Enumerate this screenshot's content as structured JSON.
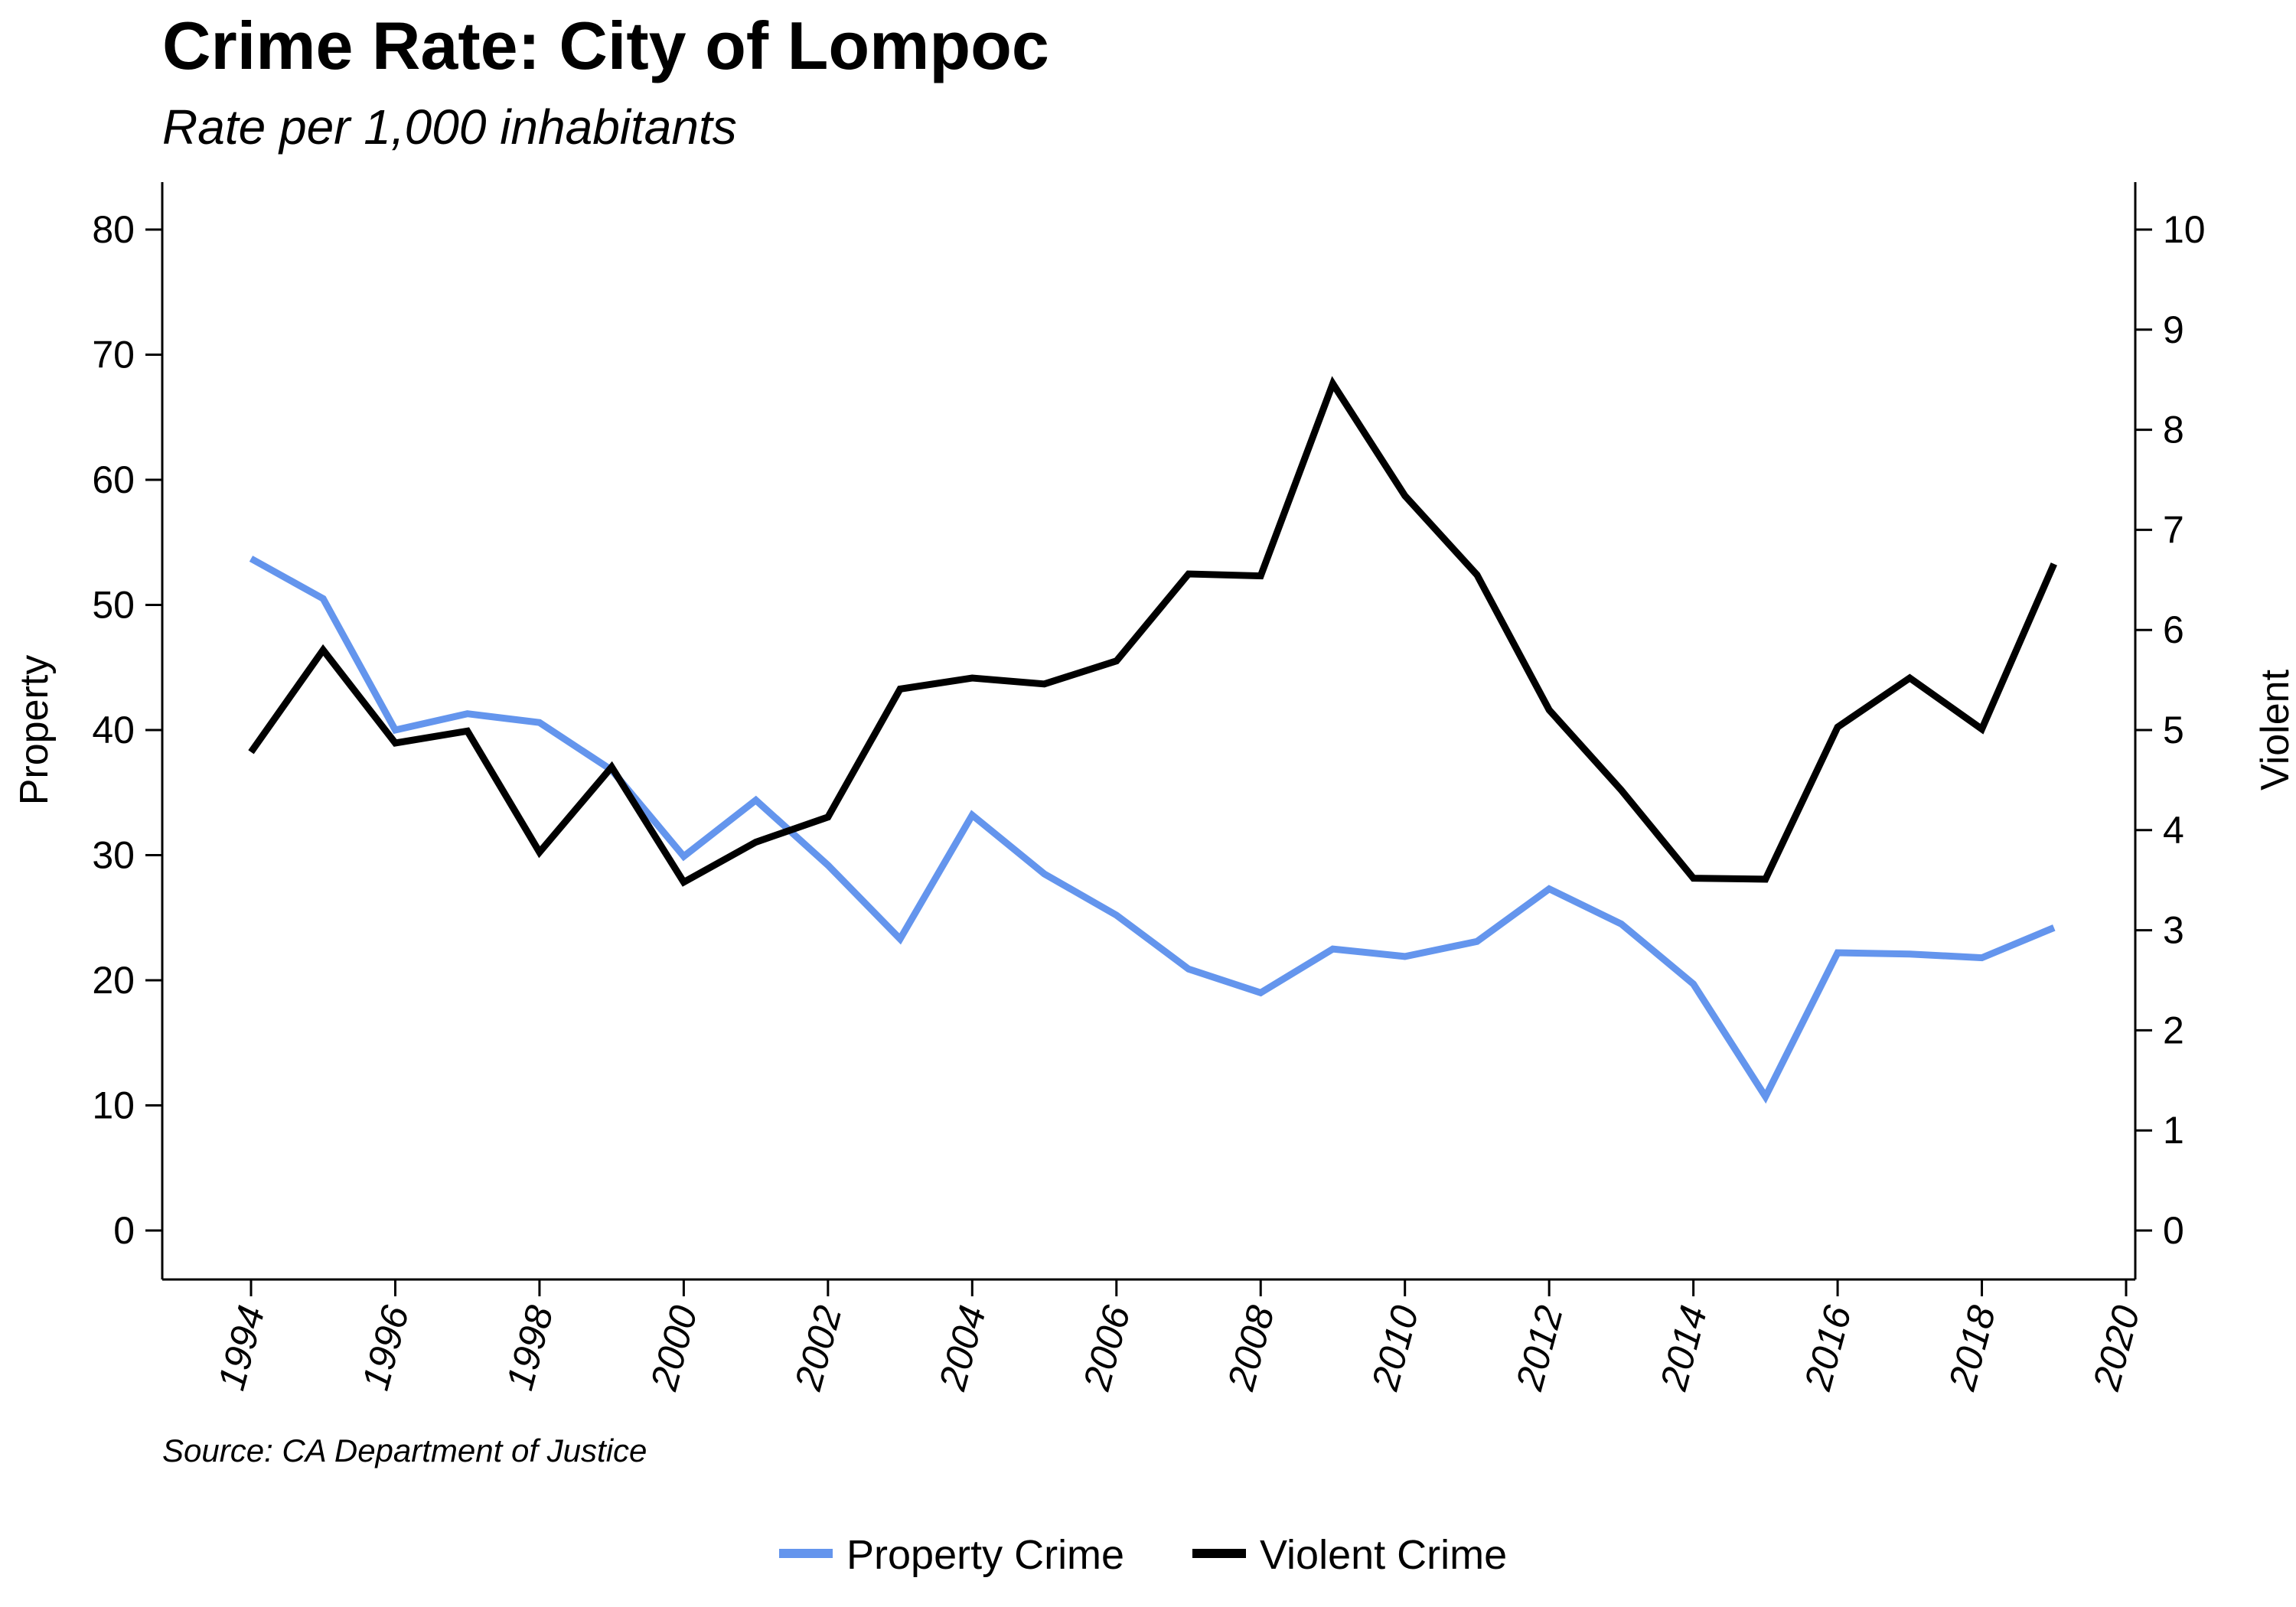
{
  "chart_data": {
    "type": "line",
    "title": "Crime Rate: City of Lompoc",
    "subtitle": "Rate per 1,000 inhabitants",
    "source": "Source: CA Department of Justice",
    "ylabel_left": "Property",
    "ylabel_right": "Violent",
    "xlabel": "",
    "xlim": [
      1994,
      2020
    ],
    "x_ticks": [
      "1994",
      "1996",
      "1998",
      "2000",
      "2002",
      "2004",
      "2006",
      "2008",
      "2010",
      "2012",
      "2014",
      "2016",
      "2018",
      "2020"
    ],
    "ylim_left": [
      0,
      80
    ],
    "y_ticks_left": [
      "0",
      "10",
      "20",
      "30",
      "40",
      "50",
      "60",
      "70",
      "80"
    ],
    "ylim_right": [
      0,
      10
    ],
    "y_ticks_right": [
      "0",
      "1",
      "2",
      "3",
      "4",
      "5",
      "6",
      "7",
      "8",
      "9",
      "10"
    ],
    "grid": false,
    "legend_position": "bottom",
    "x": [
      1994,
      1995,
      1996,
      1997,
      1998,
      1999,
      2000,
      2001,
      2002,
      2003,
      2004,
      2005,
      2006,
      2007,
      2008,
      2009,
      2010,
      2011,
      2012,
      2013,
      2014,
      2015,
      2016,
      2017,
      2018,
      2019
    ],
    "series": [
      {
        "name": "Property Crime",
        "axis": "left",
        "color": "#6495ed",
        "values": [
          53.7,
          50.5,
          40.0,
          41.3,
          40.6,
          36.8,
          29.9,
          34.4,
          29.2,
          23.3,
          33.2,
          28.5,
          25.2,
          20.9,
          19.0,
          22.5,
          21.9,
          23.1,
          27.3,
          24.5,
          19.7,
          10.7,
          22.2,
          22.1,
          21.8,
          24.2
        ]
      },
      {
        "name": "Violent Crime",
        "axis": "right",
        "color": "#000000",
        "values": [
          4.78,
          5.8,
          4.87,
          4.99,
          3.78,
          4.63,
          3.48,
          3.88,
          4.13,
          5.41,
          5.52,
          5.46,
          5.69,
          6.56,
          6.54,
          8.46,
          7.34,
          6.55,
          5.2,
          4.4,
          3.52,
          3.51,
          5.03,
          5.52,
          5.01,
          6.66
        ]
      }
    ]
  }
}
